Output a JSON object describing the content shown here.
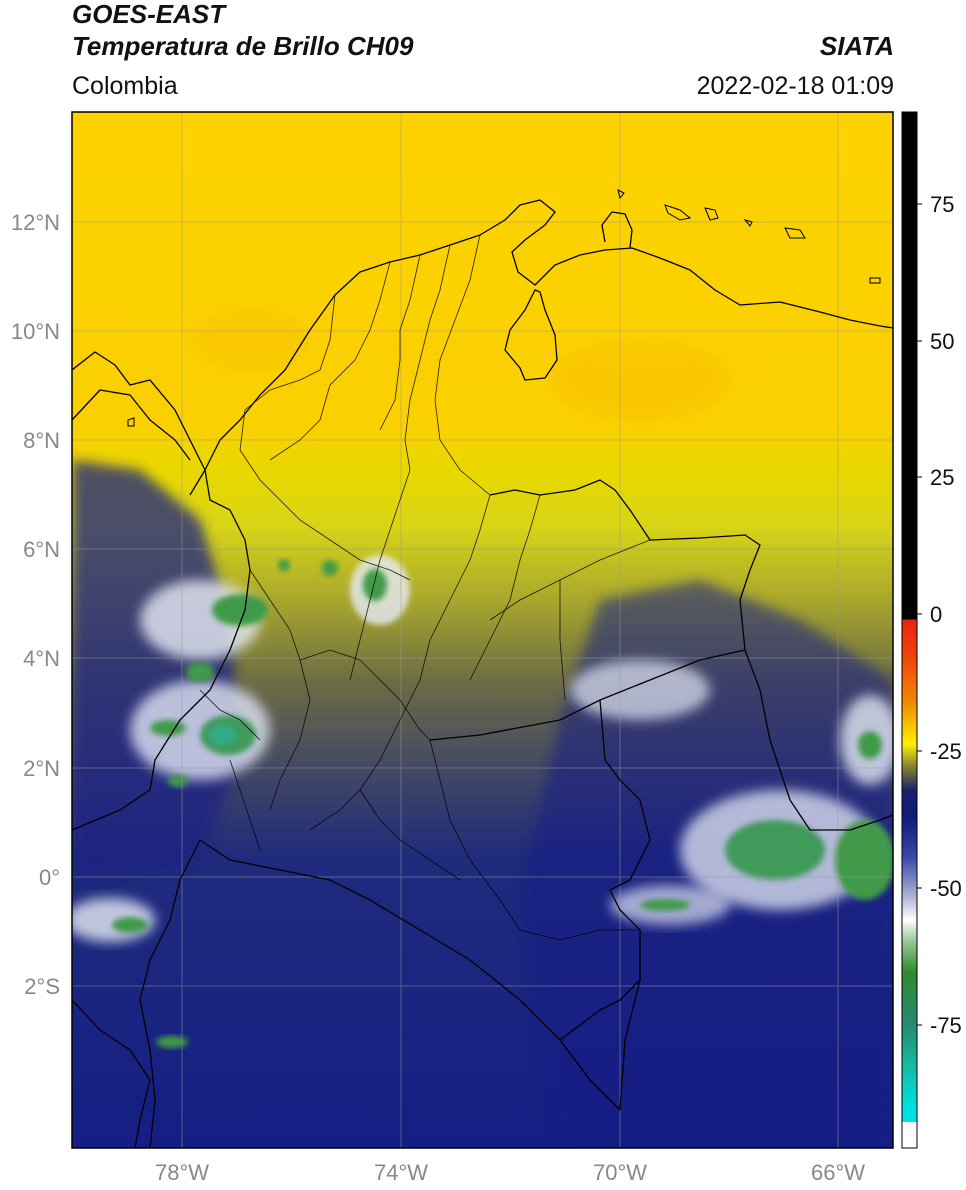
{
  "header": {
    "satellite": "GOES-EAST",
    "product": "Temperatura de Brillo CH09",
    "brand": "SIATA",
    "region": "Colombia",
    "datetime": "2022-02-18 01:09"
  },
  "map": {
    "lon_range": [
      -80,
      -65
    ],
    "lat_range": [
      -4.7,
      14.1
    ],
    "lon_ticks": [
      "78°W",
      "74°W",
      "70°W",
      "66°W"
    ],
    "lat_ticks": [
      "12°N",
      "10°N",
      "8°N",
      "6°N",
      "4°N",
      "2°N",
      "0°",
      "2°S"
    ],
    "gridlines": true
  },
  "colorbar": {
    "labels": [
      "75",
      "50",
      "25",
      "0",
      "-25",
      "-50",
      "-75"
    ],
    "range": [
      -95,
      90
    ],
    "colors": {
      "top": "#000000",
      "red": "#e8230f",
      "orange": "#f08a00",
      "yellow": "#fff000",
      "olive": "#8c8a2e",
      "navy": "#0f1a7a",
      "white": "#ffffff",
      "green": "#2f8a2f",
      "teal": "#18b8a0",
      "cyan": "#00e0e0"
    }
  }
}
